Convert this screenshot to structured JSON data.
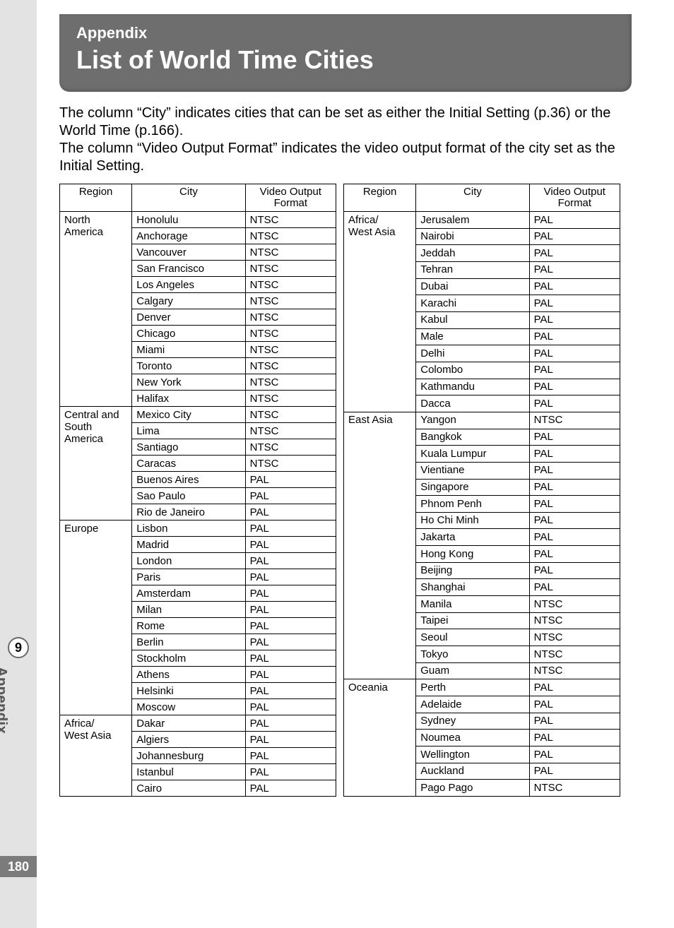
{
  "layout": {
    "colors": {
      "tab_bg": "#e3e3e3",
      "title_bg": "#6e6e6e",
      "title_fg": "#ffffff",
      "page_no_bg": "#7b7b7b",
      "border": "#000000"
    },
    "fontsize": {
      "title_small": 22,
      "title_big": 36,
      "intro": 20,
      "table": 15
    }
  },
  "side": {
    "section_number": "9",
    "section_label": "Appendix",
    "page_number": "180"
  },
  "header": {
    "supertitle": "Appendix",
    "title": "List of World Time Cities"
  },
  "intro": {
    "p1": "The column “City” indicates cities that can be set as either the Initial Setting (p.36) or the World Time (p.166).",
    "p2": "The column “Video Output Format” indicates the video output format of the city set as the Initial Setting."
  },
  "columns": {
    "region": "Region",
    "city": "City",
    "format_l1": "Video Output",
    "format_l2": "Format"
  },
  "left_groups": [
    {
      "region": "North America",
      "rows": [
        [
          "Honolulu",
          "NTSC"
        ],
        [
          "Anchorage",
          "NTSC"
        ],
        [
          "Vancouver",
          "NTSC"
        ],
        [
          "San Francisco",
          "NTSC"
        ],
        [
          "Los Angeles",
          "NTSC"
        ],
        [
          "Calgary",
          "NTSC"
        ],
        [
          "Denver",
          "NTSC"
        ],
        [
          "Chicago",
          "NTSC"
        ],
        [
          "Miami",
          "NTSC"
        ],
        [
          "Toronto",
          "NTSC"
        ],
        [
          "New York",
          "NTSC"
        ],
        [
          "Halifax",
          "NTSC"
        ]
      ]
    },
    {
      "region": "Central and South America",
      "rows": [
        [
          "Mexico City",
          "NTSC"
        ],
        [
          "Lima",
          "NTSC"
        ],
        [
          "Santiago",
          "NTSC"
        ],
        [
          "Caracas",
          "NTSC"
        ],
        [
          "Buenos Aires",
          "PAL"
        ],
        [
          "Sao Paulo",
          "PAL"
        ],
        [
          "Rio de Janeiro",
          "PAL"
        ]
      ]
    },
    {
      "region": "Europe",
      "rows": [
        [
          "Lisbon",
          "PAL"
        ],
        [
          "Madrid",
          "PAL"
        ],
        [
          "London",
          "PAL"
        ],
        [
          "Paris",
          "PAL"
        ],
        [
          "Amsterdam",
          "PAL"
        ],
        [
          "Milan",
          "PAL"
        ],
        [
          "Rome",
          "PAL"
        ],
        [
          "Berlin",
          "PAL"
        ],
        [
          "Stockholm",
          "PAL"
        ],
        [
          "Athens",
          "PAL"
        ],
        [
          "Helsinki",
          "PAL"
        ],
        [
          "Moscow",
          "PAL"
        ]
      ]
    },
    {
      "region": "Africa/\nWest Asia",
      "rows": [
        [
          "Dakar",
          "PAL"
        ],
        [
          "Algiers",
          "PAL"
        ],
        [
          "Johannesburg",
          "PAL"
        ],
        [
          "Istanbul",
          "PAL"
        ],
        [
          "Cairo",
          "PAL"
        ]
      ]
    }
  ],
  "right_groups": [
    {
      "region": "Africa/\nWest Asia",
      "rows": [
        [
          "Jerusalem",
          "PAL"
        ],
        [
          "Nairobi",
          "PAL"
        ],
        [
          "Jeddah",
          "PAL"
        ],
        [
          "Tehran",
          "PAL"
        ],
        [
          "Dubai",
          "PAL"
        ],
        [
          "Karachi",
          "PAL"
        ],
        [
          "Kabul",
          "PAL"
        ],
        [
          "Male",
          "PAL"
        ],
        [
          "Delhi",
          "PAL"
        ],
        [
          "Colombo",
          "PAL"
        ],
        [
          "Kathmandu",
          "PAL"
        ],
        [
          "Dacca",
          "PAL"
        ]
      ]
    },
    {
      "region": "East Asia",
      "rows": [
        [
          "Yangon",
          "NTSC"
        ],
        [
          "Bangkok",
          "PAL"
        ],
        [
          "Kuala Lumpur",
          "PAL"
        ],
        [
          "Vientiane",
          "PAL"
        ],
        [
          "Singapore",
          "PAL"
        ],
        [
          "Phnom Penh",
          "PAL"
        ],
        [
          "Ho Chi Minh",
          "PAL"
        ],
        [
          "Jakarta",
          "PAL"
        ],
        [
          "Hong Kong",
          "PAL"
        ],
        [
          "Beijing",
          "PAL"
        ],
        [
          "Shanghai",
          "PAL"
        ],
        [
          "Manila",
          "NTSC"
        ],
        [
          "Taipei",
          "NTSC"
        ],
        [
          "Seoul",
          "NTSC"
        ],
        [
          "Tokyo",
          "NTSC"
        ],
        [
          "Guam",
          "NTSC"
        ]
      ]
    },
    {
      "region": "Oceania",
      "rows": [
        [
          "Perth",
          "PAL"
        ],
        [
          "Adelaide",
          "PAL"
        ],
        [
          "Sydney",
          "PAL"
        ],
        [
          "Noumea",
          "PAL"
        ],
        [
          "Wellington",
          "PAL"
        ],
        [
          "Auckland",
          "PAL"
        ],
        [
          "Pago Pago",
          "NTSC"
        ]
      ]
    }
  ]
}
